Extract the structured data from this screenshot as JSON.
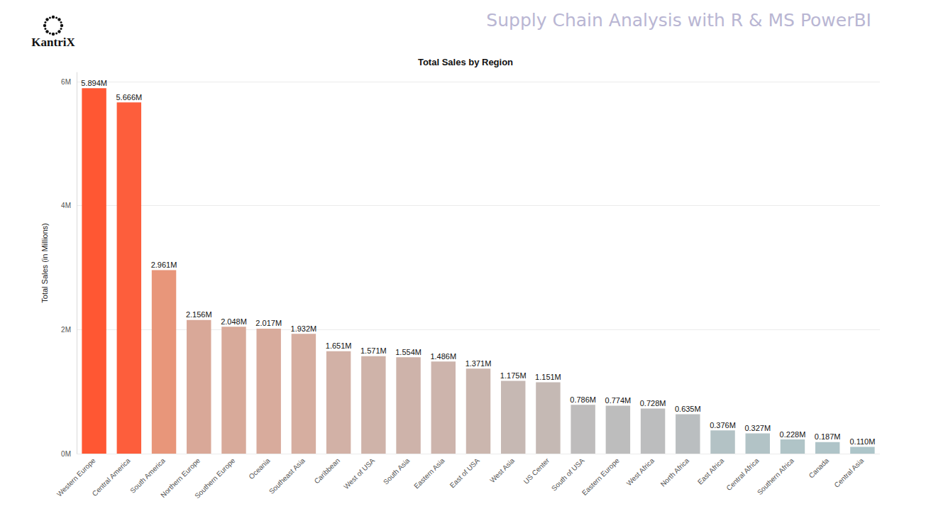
{
  "header": {
    "logo": "KantriX",
    "title": "Supply Chain Analysis with R & MS PowerBI"
  },
  "chart_data": {
    "type": "bar",
    "title": "Total Sales by Region",
    "y_label": "Total Sales (in Millions)",
    "categories": [
      "Western Europe",
      "Central America",
      "South America",
      "Northern Europe",
      "Southern Europe",
      "Oceania",
      "Southeast Asia",
      "Caribbean",
      "West of USA",
      "South Asia",
      "Eastern Asia",
      "East of USA",
      "West Asia",
      "US Center",
      "South of USA",
      "Eastern Europe",
      "West Africa",
      "North Africa",
      "East Africa",
      "Central Africa",
      "Southern Africa",
      "Canada",
      "Central Asia"
    ],
    "values": [
      5.894,
      5.666,
      2.961,
      2.156,
      2.048,
      2.017,
      1.932,
      1.651,
      1.571,
      1.554,
      1.486,
      1.371,
      1.175,
      1.151,
      0.786,
      0.774,
      0.728,
      0.635,
      0.376,
      0.327,
      0.228,
      0.187,
      0.11
    ],
    "value_labels": [
      "5.894M",
      "5.666M",
      "2.961M",
      "2.156M",
      "2.048M",
      "2.017M",
      "1.932M",
      "1.651M",
      "1.571M",
      "1.554M",
      "1.486M",
      "1.371M",
      "1.175M",
      "1.151M",
      "0.786M",
      "0.774M",
      "0.728M",
      "0.635M",
      "0.376M",
      "0.327M",
      "0.228M",
      "0.187M",
      "0.110M"
    ],
    "colors": [
      "#ff5733",
      "#fd5e3c",
      "#e8967a",
      "#d9a898",
      "#d8aa9a",
      "#d8ab9c",
      "#d6aea0",
      "#d2b1a6",
      "#cfb3a9",
      "#ceb3aa",
      "#cdb4ac",
      "#cbb6ae",
      "#c6b8b3",
      "#c5b9b4",
      "#bebcbc",
      "#bdbdbd",
      "#bcbdbe",
      "#babec0",
      "#b3c2c5",
      "#b2c3c6",
      "#b0c4c7",
      "#afc4c8",
      "#adc5c9"
    ],
    "ylim": [
      0,
      6.15
    ],
    "yticks": [
      {
        "value": 0,
        "label": "0M"
      },
      {
        "value": 2,
        "label": "2M"
      },
      {
        "value": 4,
        "label": "4M"
      },
      {
        "value": 6,
        "label": "6M"
      }
    ],
    "grid": true,
    "data_labels": true
  }
}
